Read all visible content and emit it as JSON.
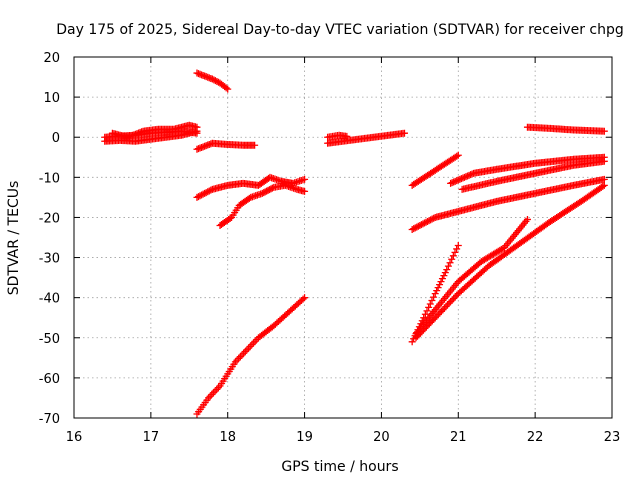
{
  "chart_data": {
    "type": "scatter",
    "title": "Day 175 of 2025, Sidereal Day-to-day VTEC variation (SDTVAR) for receiver chpg",
    "xlabel": "GPS time / hours",
    "ylabel": "SDTVAR / TECUs",
    "xlim": [
      16,
      23
    ],
    "ylim": [
      -70,
      20
    ],
    "xticks": [
      16,
      17,
      18,
      19,
      20,
      21,
      22,
      23
    ],
    "yticks": [
      -70,
      -60,
      -50,
      -40,
      -30,
      -20,
      -10,
      0,
      10,
      20
    ],
    "grid": true,
    "marker": "plus",
    "color": "#ff0000",
    "series": [
      {
        "points": [
          [
            16.4,
            0
          ],
          [
            16.6,
            0.3
          ],
          [
            16.8,
            0.5
          ],
          [
            17.0,
            1.0
          ],
          [
            17.2,
            1.2
          ],
          [
            17.4,
            1.5
          ],
          [
            17.6,
            1.0
          ]
        ]
      },
      {
        "points": [
          [
            16.4,
            -1
          ],
          [
            16.6,
            -0.8
          ],
          [
            16.8,
            -1.0
          ],
          [
            17.0,
            -0.5
          ],
          [
            17.2,
            0
          ],
          [
            17.4,
            0.5
          ],
          [
            17.6,
            1.5
          ]
        ]
      },
      {
        "points": [
          [
            16.5,
            1
          ],
          [
            16.7,
            0
          ],
          [
            16.9,
            1.5
          ],
          [
            17.1,
            2
          ],
          [
            17.3,
            2
          ],
          [
            17.5,
            3
          ],
          [
            17.6,
            2.5
          ]
        ]
      },
      {
        "points": [
          [
            17.6,
            -3
          ],
          [
            17.8,
            -1.5
          ],
          [
            18.0,
            -1.8
          ],
          [
            18.2,
            -2
          ],
          [
            18.35,
            -2
          ]
        ]
      },
      {
        "points": [
          [
            17.6,
            16
          ],
          [
            17.8,
            14.5
          ],
          [
            17.9,
            13.5
          ],
          [
            18.0,
            12
          ]
        ]
      },
      {
        "points": [
          [
            17.6,
            -15
          ],
          [
            17.8,
            -13
          ],
          [
            18.0,
            -12
          ],
          [
            18.2,
            -11.5
          ],
          [
            18.4,
            -12
          ],
          [
            18.55,
            -10
          ],
          [
            18.7,
            -11
          ],
          [
            18.85,
            -11.5
          ],
          [
            19.0,
            -10.5
          ]
        ]
      },
      {
        "points": [
          [
            17.9,
            -22
          ],
          [
            18.05,
            -20
          ],
          [
            18.15,
            -17
          ],
          [
            18.3,
            -15
          ],
          [
            18.45,
            -14
          ],
          [
            18.6,
            -12.5
          ],
          [
            18.75,
            -12
          ],
          [
            18.9,
            -13
          ],
          [
            19.0,
            -13.5
          ]
        ]
      },
      {
        "points": [
          [
            17.6,
            -69
          ],
          [
            17.75,
            -65
          ],
          [
            17.9,
            -62
          ],
          [
            18.0,
            -59
          ],
          [
            18.1,
            -56
          ],
          [
            18.25,
            -53
          ],
          [
            18.4,
            -50
          ],
          [
            18.6,
            -47
          ],
          [
            18.8,
            -43.5
          ],
          [
            19.0,
            -40
          ]
        ]
      },
      {
        "points": [
          [
            19.3,
            -1.5
          ],
          [
            19.5,
            -1
          ],
          [
            19.7,
            -0.5
          ],
          [
            19.9,
            0
          ],
          [
            20.1,
            0.5
          ],
          [
            20.3,
            1
          ]
        ]
      },
      {
        "points": [
          [
            19.3,
            0
          ],
          [
            19.45,
            0.5
          ],
          [
            19.55,
            0.2
          ]
        ]
      },
      {
        "points": [
          [
            20.4,
            -12
          ],
          [
            20.6,
            -9.5
          ],
          [
            20.8,
            -7
          ],
          [
            21.0,
            -4.5
          ]
        ]
      },
      {
        "points": [
          [
            20.9,
            -11.5
          ],
          [
            21.2,
            -9
          ],
          [
            21.5,
            -8
          ],
          [
            22.0,
            -6.5
          ],
          [
            22.5,
            -5.5
          ],
          [
            22.9,
            -5
          ]
        ]
      },
      {
        "points": [
          [
            21.05,
            -13
          ],
          [
            21.5,
            -11
          ],
          [
            22.0,
            -9
          ],
          [
            22.5,
            -7
          ],
          [
            22.9,
            -6
          ]
        ]
      },
      {
        "points": [
          [
            20.4,
            -23
          ],
          [
            20.7,
            -20
          ],
          [
            21.0,
            -18.5
          ],
          [
            21.5,
            -16
          ],
          [
            22.0,
            -14
          ],
          [
            22.5,
            -12
          ],
          [
            22.9,
            -10.5
          ]
        ]
      },
      {
        "points": [
          [
            21.9,
            2.5
          ],
          [
            22.2,
            2.2
          ],
          [
            22.5,
            1.8
          ],
          [
            22.9,
            1.5
          ]
        ]
      },
      {
        "points": [
          [
            20.4,
            -51
          ],
          [
            20.55,
            -45
          ],
          [
            20.7,
            -39
          ],
          [
            20.85,
            -33
          ],
          [
            21.0,
            -27
          ]
        ]
      },
      {
        "points": [
          [
            20.45,
            -49
          ],
          [
            20.7,
            -43
          ],
          [
            21.0,
            -36
          ],
          [
            21.3,
            -31
          ],
          [
            21.6,
            -27.5
          ],
          [
            21.9,
            -20.5
          ]
        ]
      },
      {
        "points": [
          [
            20.45,
            -50
          ],
          [
            20.7,
            -45
          ],
          [
            21.0,
            -39
          ],
          [
            21.4,
            -32
          ],
          [
            21.8,
            -26.5
          ],
          [
            22.2,
            -21
          ],
          [
            22.6,
            -16
          ],
          [
            22.9,
            -12
          ]
        ]
      }
    ]
  }
}
